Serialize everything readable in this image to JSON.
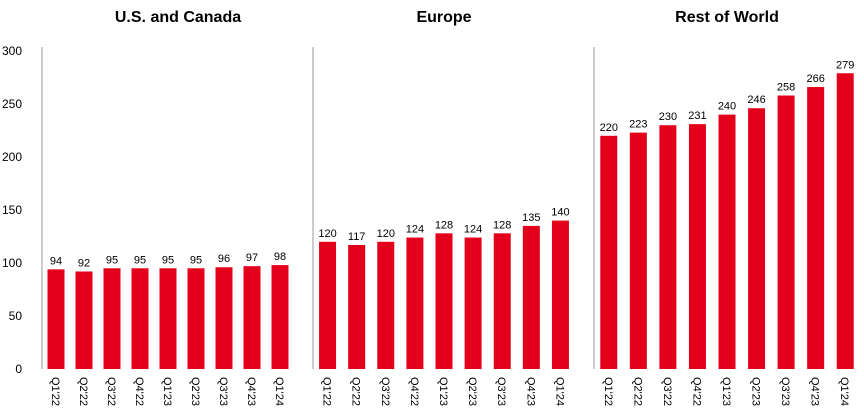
{
  "chart_data": {
    "type": "bar",
    "shared_y_axis": true,
    "ylim": [
      0,
      300
    ],
    "yticks": [
      0,
      50,
      100,
      150,
      200,
      250,
      300
    ],
    "grid": false,
    "bar_color": "#E2001A",
    "panels": [
      {
        "title": "U.S. and Canada",
        "categories": [
          "Q1'22",
          "Q2'22",
          "Q3'22",
          "Q4'22",
          "Q1'23",
          "Q2'23",
          "Q3'23",
          "Q4'23",
          "Q1'24"
        ],
        "values": [
          94,
          92,
          95,
          95,
          95,
          95,
          96,
          97,
          98
        ]
      },
      {
        "title": "Europe",
        "categories": [
          "Q1'22",
          "Q2'22",
          "Q3'22",
          "Q4'22",
          "Q1'23",
          "Q2'23",
          "Q3'23",
          "Q4'23",
          "Q1'24"
        ],
        "values": [
          120,
          117,
          120,
          124,
          128,
          124,
          128,
          135,
          140
        ]
      },
      {
        "title": "Rest of World",
        "categories": [
          "Q1'22",
          "Q2'22",
          "Q3'22",
          "Q4'22",
          "Q1'23",
          "Q2'23",
          "Q3'23",
          "Q4'23",
          "Q1'24"
        ],
        "values": [
          220,
          223,
          230,
          231,
          240,
          246,
          258,
          266,
          279
        ]
      }
    ]
  }
}
